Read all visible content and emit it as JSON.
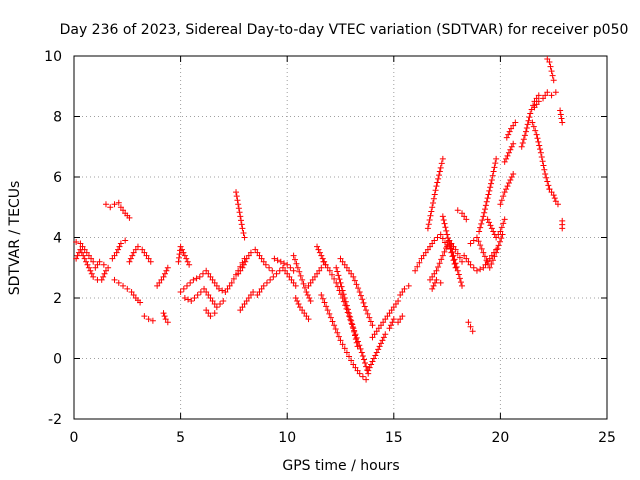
{
  "chart_data": {
    "type": "scatter",
    "title": "Day 236 of 2023, Sidereal Day-to-day VTEC variation (SDTVAR) for receiver p050",
    "xlabel": "GPS time / hours",
    "ylabel": "SDTVAR / TECUs",
    "xlim": [
      0,
      25
    ],
    "ylim": [
      -2,
      10
    ],
    "xticks": [
      0,
      5,
      10,
      15,
      20,
      25
    ],
    "yticks": [
      -2,
      0,
      2,
      4,
      6,
      8,
      10
    ],
    "xtick_labels": [
      "0",
      "5",
      "10",
      "15",
      "20",
      "25"
    ],
    "ytick_labels": [
      "-2",
      "0",
      "2",
      "4",
      "6",
      "8",
      "10"
    ],
    "grid": true,
    "marker": "+",
    "color": "#ff0000",
    "series": [
      {
        "name": "s1",
        "x": [
          0.1,
          0.3,
          0.5,
          0.7,
          0.9,
          1.1,
          1.3,
          1.5
        ],
        "y": [
          3.3,
          3.6,
          3.3,
          3.0,
          2.7,
          2.6,
          2.6,
          2.9
        ]
      },
      {
        "name": "s2",
        "x": [
          0.1,
          0.3,
          0.5,
          0.7,
          0.9
        ],
        "y": [
          3.85,
          3.8,
          3.6,
          3.4,
          3.2
        ]
      },
      {
        "name": "s3",
        "x": [
          1.0,
          1.2,
          1.4,
          1.6
        ],
        "y": [
          3.0,
          3.2,
          3.1,
          3.0
        ]
      },
      {
        "name": "s4",
        "x": [
          1.5,
          1.7,
          1.9,
          2.1
        ],
        "y": [
          5.1,
          5.0,
          5.1,
          5.15
        ]
      },
      {
        "name": "s5",
        "x": [
          2.2,
          2.4,
          2.6
        ],
        "y": [
          5.0,
          4.8,
          4.65
        ]
      },
      {
        "name": "s6",
        "x": [
          1.8,
          2.0,
          2.2,
          2.4
        ],
        "y": [
          3.3,
          3.5,
          3.8,
          3.9
        ]
      },
      {
        "name": "s7",
        "x": [
          1.9,
          2.1,
          2.3,
          2.5,
          2.7,
          2.9,
          3.1
        ],
        "y": [
          2.6,
          2.5,
          2.4,
          2.3,
          2.2,
          2.0,
          1.85
        ]
      },
      {
        "name": "s8",
        "x": [
          2.6,
          2.8,
          3.0,
          3.2,
          3.4,
          3.6
        ],
        "y": [
          3.2,
          3.5,
          3.7,
          3.6,
          3.4,
          3.2
        ]
      },
      {
        "name": "s9",
        "x": [
          3.3,
          3.5,
          3.7
        ],
        "y": [
          1.4,
          1.3,
          1.25
        ]
      },
      {
        "name": "s10",
        "x": [
          3.9,
          4.2,
          4.4
        ],
        "y": [
          2.4,
          2.7,
          3.0
        ]
      },
      {
        "name": "s11",
        "x": [
          4.2,
          4.3,
          4.4
        ],
        "y": [
          1.5,
          1.3,
          1.2
        ]
      },
      {
        "name": "s12",
        "x": [
          4.9,
          5.0,
          5.2,
          5.4
        ],
        "y": [
          3.2,
          3.7,
          3.4,
          3.1
        ]
      },
      {
        "name": "s13",
        "x": [
          5.0,
          5.3,
          5.6,
          5.9,
          6.2,
          6.5,
          6.8,
          7.1,
          7.4,
          7.7,
          8.0
        ],
        "y": [
          2.2,
          2.4,
          2.6,
          2.7,
          2.9,
          2.6,
          2.3,
          2.2,
          2.5,
          2.9,
          3.3
        ]
      },
      {
        "name": "s14",
        "x": [
          5.2,
          5.5,
          5.8,
          6.1,
          6.4,
          6.7,
          7.0
        ],
        "y": [
          2.0,
          1.9,
          2.1,
          2.3,
          2.0,
          1.7,
          1.9
        ]
      },
      {
        "name": "s15",
        "x": [
          6.2,
          6.4,
          6.6
        ],
        "y": [
          1.6,
          1.4,
          1.5
        ]
      },
      {
        "name": "s16",
        "x": [
          7.6,
          7.7,
          7.8,
          7.9,
          8.0
        ],
        "y": [
          5.5,
          5.1,
          4.7,
          4.3,
          4.0
        ]
      },
      {
        "name": "s17",
        "x": [
          7.7,
          7.9,
          8.1,
          8.3,
          8.5,
          8.7,
          9.0,
          9.3
        ],
        "y": [
          2.8,
          3.0,
          3.3,
          3.5,
          3.6,
          3.4,
          3.1,
          2.9
        ]
      },
      {
        "name": "s18",
        "x": [
          7.8,
          8.0,
          8.2,
          8.4
        ],
        "y": [
          1.6,
          1.8,
          2.0,
          2.2
        ]
      },
      {
        "name": "s19",
        "x": [
          8.6,
          8.9,
          9.2,
          9.5,
          9.8,
          10.1,
          10.4
        ],
        "y": [
          2.1,
          2.4,
          2.6,
          2.8,
          3.0,
          2.7,
          2.4
        ]
      },
      {
        "name": "s20",
        "x": [
          9.4,
          9.7,
          10.0,
          10.3
        ],
        "y": [
          3.3,
          3.2,
          3.1,
          2.9
        ]
      },
      {
        "name": "s21",
        "x": [
          10.3,
          10.5,
          10.7,
          10.9,
          11.1
        ],
        "y": [
          3.4,
          3.0,
          2.6,
          2.2,
          1.9
        ]
      },
      {
        "name": "s22",
        "x": [
          10.4,
          10.6,
          10.8,
          11.0
        ],
        "y": [
          2.0,
          1.7,
          1.5,
          1.3
        ]
      },
      {
        "name": "s23",
        "x": [
          11.0,
          11.2,
          11.4,
          11.6
        ],
        "y": [
          2.4,
          2.6,
          2.8,
          3.0
        ]
      },
      {
        "name": "s24",
        "x": [
          11.4,
          11.6,
          11.8
        ],
        "y": [
          3.7,
          3.4,
          3.1
        ]
      },
      {
        "name": "s25",
        "x": [
          11.7,
          12.0,
          12.3,
          12.6,
          12.9,
          13.2,
          13.5,
          13.8
        ],
        "y": [
          3.2,
          2.9,
          2.5,
          2.0,
          1.4,
          0.8,
          0.2,
          -0.5
        ]
      },
      {
        "name": "s26",
        "x": [
          11.6,
          11.9,
          12.2,
          12.5,
          12.8,
          13.1,
          13.4,
          13.7
        ],
        "y": [
          2.1,
          1.6,
          1.1,
          0.6,
          0.2,
          -0.2,
          -0.5,
          -0.7
        ]
      },
      {
        "name": "s27",
        "x": [
          12.3,
          12.5,
          12.7,
          12.9,
          13.1,
          13.3
        ],
        "y": [
          3.0,
          2.5,
          2.0,
          1.5,
          1.0,
          0.4
        ]
      },
      {
        "name": "s28",
        "x": [
          12.5,
          12.8,
          13.1,
          13.4,
          13.7,
          14.0
        ],
        "y": [
          3.3,
          3.0,
          2.7,
          2.2,
          1.6,
          1.1
        ]
      },
      {
        "name": "s29",
        "x": [
          13.8,
          14.0,
          14.2,
          14.4,
          14.6
        ],
        "y": [
          -0.4,
          -0.1,
          0.2,
          0.5,
          0.8
        ]
      },
      {
        "name": "s30",
        "x": [
          14.0,
          14.3,
          14.6,
          14.9,
          15.2
        ],
        "y": [
          0.7,
          1.0,
          1.3,
          1.6,
          1.9
        ]
      },
      {
        "name": "s31",
        "x": [
          14.8,
          15.0,
          15.2,
          15.4
        ],
        "y": [
          1.0,
          1.3,
          1.2,
          1.4
        ]
      },
      {
        "name": "s32",
        "x": [
          15.3,
          15.5,
          15.7
        ],
        "y": [
          2.1,
          2.3,
          2.4
        ]
      },
      {
        "name": "s33",
        "x": [
          16.0,
          16.3,
          16.6,
          16.9,
          17.2,
          17.5
        ],
        "y": [
          2.9,
          3.3,
          3.6,
          3.9,
          4.1,
          3.7
        ]
      },
      {
        "name": "s34",
        "x": [
          16.6,
          16.8,
          17.0,
          17.2,
          17.3
        ],
        "y": [
          4.3,
          5.0,
          5.7,
          6.3,
          6.6
        ]
      },
      {
        "name": "s35",
        "x": [
          17.3,
          17.5,
          17.7,
          17.9
        ],
        "y": [
          4.7,
          4.1,
          3.5,
          3.0
        ]
      },
      {
        "name": "s36",
        "x": [
          16.7,
          17.0,
          17.3,
          17.6,
          17.9,
          18.2
        ],
        "y": [
          2.6,
          2.9,
          3.4,
          3.9,
          3.6,
          3.2
        ]
      },
      {
        "name": "s37",
        "x": [
          16.8,
          17.0,
          17.2
        ],
        "y": [
          2.3,
          2.6,
          2.5
        ]
      },
      {
        "name": "s38",
        "x": [
          17.6,
          17.8,
          18.0,
          18.2
        ],
        "y": [
          3.9,
          3.4,
          2.9,
          2.4
        ]
      },
      {
        "name": "s39",
        "x": [
          18.0,
          18.2,
          18.4
        ],
        "y": [
          4.9,
          4.8,
          4.6
        ]
      },
      {
        "name": "s40",
        "x": [
          18.5,
          18.6,
          18.7
        ],
        "y": [
          1.2,
          1.05,
          0.9
        ]
      },
      {
        "name": "s41",
        "x": [
          18.3,
          18.6,
          18.9,
          19.2,
          19.5,
          19.8
        ],
        "y": [
          3.4,
          3.1,
          2.9,
          3.0,
          3.3,
          3.6
        ]
      },
      {
        "name": "s42",
        "x": [
          18.6,
          18.9,
          19.2,
          19.5,
          19.8,
          20.1
        ],
        "y": [
          3.8,
          4.0,
          3.5,
          3.0,
          3.5,
          4.1
        ]
      },
      {
        "name": "s43",
        "x": [
          19.0,
          19.2,
          19.4,
          19.6,
          19.8
        ],
        "y": [
          4.2,
          4.7,
          5.3,
          5.9,
          6.6
        ]
      },
      {
        "name": "s44",
        "x": [
          19.4,
          19.6,
          19.8,
          20.0,
          20.2
        ],
        "y": [
          4.6,
          4.3,
          4.0,
          4.2,
          4.6
        ]
      },
      {
        "name": "s45",
        "x": [
          20.0,
          20.2,
          20.4,
          20.6
        ],
        "y": [
          5.1,
          5.5,
          5.8,
          6.1
        ]
      },
      {
        "name": "s46",
        "x": [
          20.2,
          20.4,
          20.6
        ],
        "y": [
          6.5,
          6.8,
          7.1
        ]
      },
      {
        "name": "s47",
        "x": [
          20.3,
          20.5,
          20.7
        ],
        "y": [
          7.3,
          7.6,
          7.8
        ]
      },
      {
        "name": "s48",
        "x": [
          21.0,
          21.2,
          21.4,
          21.6,
          21.8
        ],
        "y": [
          7.0,
          7.5,
          8.1,
          8.5,
          8.7
        ]
      },
      {
        "name": "s49",
        "x": [
          21.5,
          21.7,
          21.9,
          22.1,
          22.3
        ],
        "y": [
          7.8,
          7.4,
          6.8,
          6.1,
          5.6
        ]
      },
      {
        "name": "s50",
        "x": [
          22.3,
          22.5,
          22.6,
          22.7
        ],
        "y": [
          5.6,
          5.4,
          5.2,
          5.1
        ]
      },
      {
        "name": "s51",
        "x": [
          21.6,
          21.8,
          22.0,
          22.2,
          22.4,
          22.6
        ],
        "y": [
          8.3,
          8.5,
          8.6,
          8.8,
          8.7,
          8.8
        ]
      },
      {
        "name": "s52",
        "x": [
          22.2,
          22.3,
          22.4,
          22.5
        ],
        "y": [
          9.9,
          9.8,
          9.5,
          9.2
        ]
      },
      {
        "name": "s53",
        "x": [
          22.8,
          22.9
        ],
        "y": [
          8.2,
          7.8
        ]
      },
      {
        "name": "s54",
        "x": [
          22.9,
          22.9
        ],
        "y": [
          4.55,
          4.3
        ]
      }
    ]
  }
}
